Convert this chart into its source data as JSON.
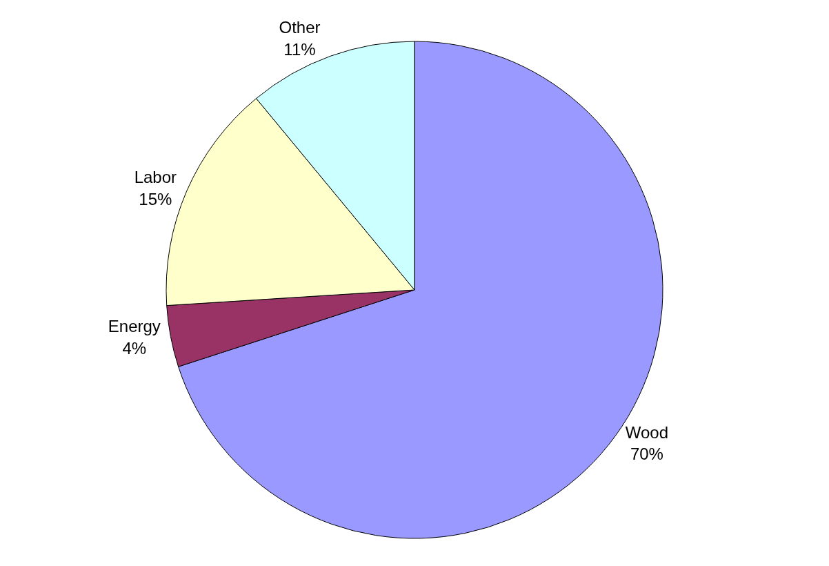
{
  "chart_data": {
    "type": "pie",
    "categories": [
      "Wood",
      "Energy",
      "Labor",
      "Other"
    ],
    "values": [
      70,
      4,
      15,
      11
    ],
    "value_labels": [
      "70%",
      "4%",
      "15%",
      "11%"
    ],
    "colors": [
      "#9999ff",
      "#993366",
      "#ffffcc",
      "#ccffff"
    ],
    "legend": false
  }
}
